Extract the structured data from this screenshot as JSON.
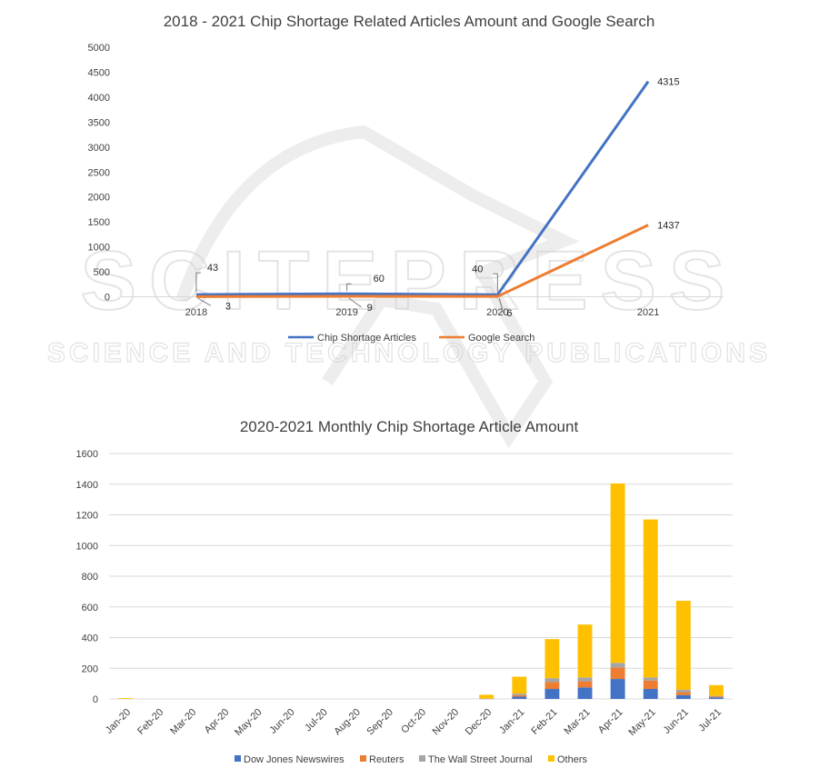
{
  "watermark": {
    "main": "SCITEPRESS",
    "sub": "SCIENCE AND TECHNOLOGY PUBLICATIONS"
  },
  "chart_data": [
    {
      "type": "line",
      "title": "2018 - 2021 Chip Shortage Related Articles Amount and Google Search",
      "categories": [
        "2018",
        "2019",
        "2020",
        "2021"
      ],
      "ylim": [
        0,
        5000
      ],
      "yticks": [
        0,
        500,
        1000,
        1500,
        2000,
        2500,
        3000,
        3500,
        4000,
        4500,
        5000
      ],
      "grid": false,
      "legend": "bottom",
      "series": [
        {
          "name": "Chip Shortage Articles",
          "color": "#4472C4",
          "values": [
            43,
            60,
            40,
            4315
          ]
        },
        {
          "name": "Google Search",
          "color": "#ED7D31",
          "values": [
            3,
            9,
            6,
            1437
          ]
        }
      ]
    },
    {
      "type": "bar",
      "stacked": true,
      "title": "2020-2021 Monthly Chip Shortage Article Amount",
      "categories": [
        "Jan-20",
        "Feb-20",
        "Mar-20",
        "Apr-20",
        "May-20",
        "Jun-20",
        "Jul-20",
        "Aug-20",
        "Sep-20",
        "Oct-20",
        "Nov-20",
        "Dec-20",
        "Jan-21",
        "Feb-21",
        "Mar-21",
        "Apr-21",
        "May-21",
        "Jun-21",
        "Jul-21"
      ],
      "ylim": [
        0,
        1600
      ],
      "yticks": [
        0,
        200,
        400,
        600,
        800,
        1000,
        1200,
        1400,
        1600
      ],
      "grid": true,
      "legend": "bottom",
      "series": [
        {
          "name": "Dow Jones Newswires",
          "color": "#4472C4",
          "values": [
            0,
            0,
            0,
            0,
            0,
            0,
            0,
            0,
            0,
            0,
            0,
            0,
            15,
            65,
            75,
            130,
            65,
            25,
            10
          ]
        },
        {
          "name": "Reuters",
          "color": "#ED7D31",
          "values": [
            0,
            0,
            0,
            0,
            0,
            0,
            0,
            0,
            0,
            0,
            0,
            0,
            10,
            45,
            40,
            75,
            55,
            20,
            5
          ]
        },
        {
          "name": "The Wall Street Journal",
          "color": "#A5A5A5",
          "values": [
            0,
            0,
            0,
            0,
            0,
            0,
            0,
            0,
            0,
            0,
            0,
            2,
            10,
            25,
            25,
            30,
            20,
            15,
            5
          ]
        },
        {
          "name": "Others",
          "color": "#FFC000",
          "values": [
            5,
            0,
            0,
            0,
            0,
            0,
            0,
            0,
            0,
            0,
            0,
            25,
            110,
            255,
            345,
            1170,
            1030,
            580,
            70
          ]
        }
      ]
    }
  ]
}
